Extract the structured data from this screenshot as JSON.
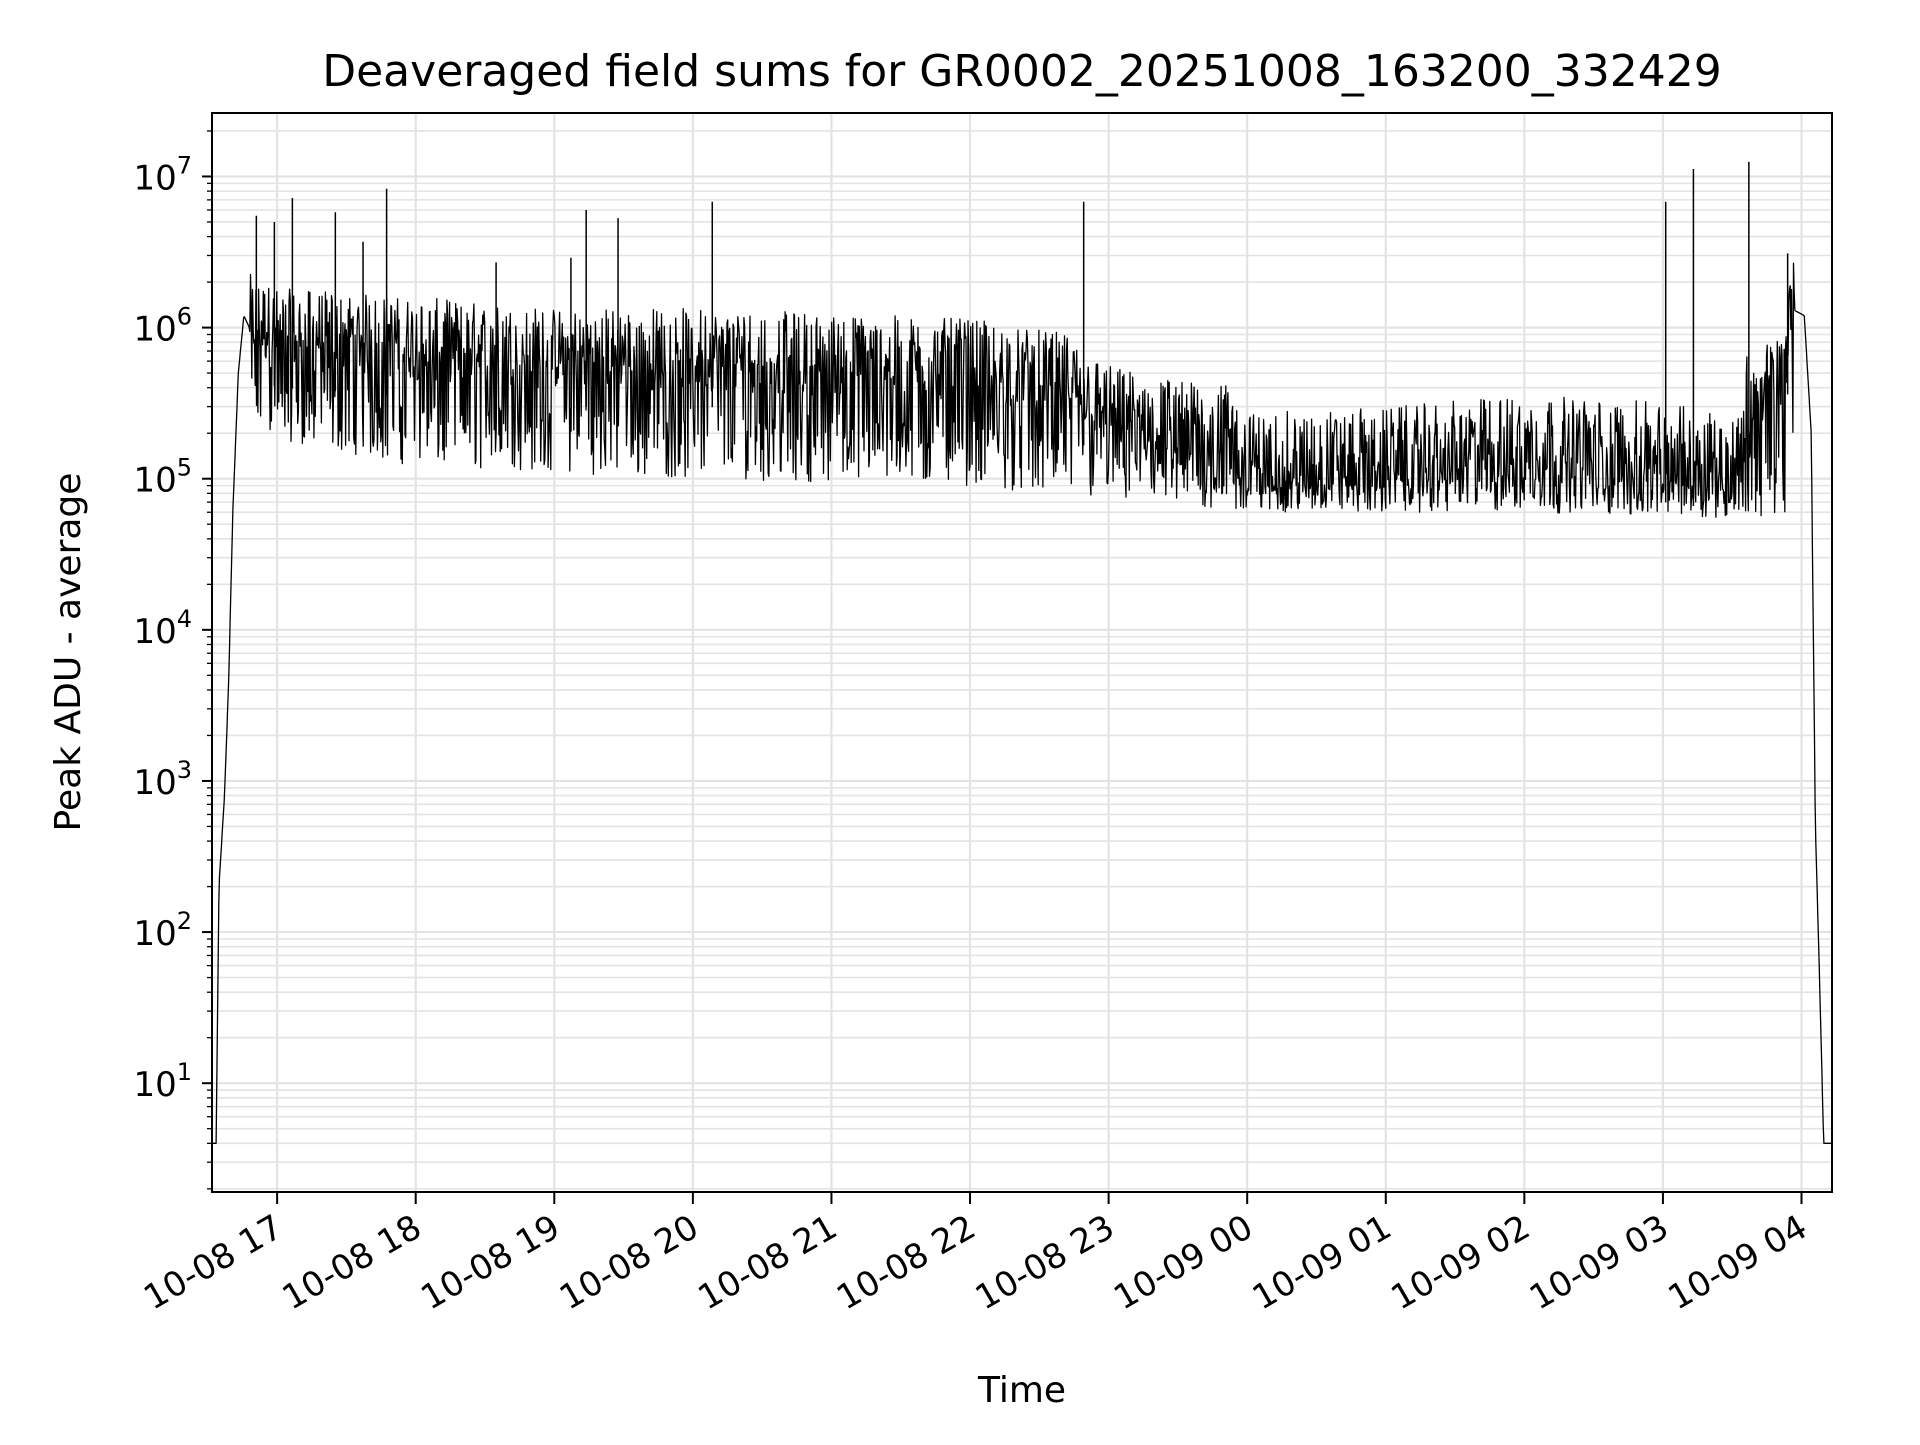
{
  "chart_data": {
    "type": "line",
    "title": "Deaveraged field sums for GR0002_20251008_163200_332429",
    "xlabel": "Time",
    "ylabel": "Peak ADU - average",
    "yscale": "log",
    "ylim_log10": [
      0.28,
      7.42
    ],
    "xlim_hours": [
      16.53,
      28.22
    ],
    "grid": true,
    "x_ticks": [
      {
        "label": "10-08 17",
        "hour": 17
      },
      {
        "label": "10-08 18",
        "hour": 18
      },
      {
        "label": "10-08 19",
        "hour": 19
      },
      {
        "label": "10-08 20",
        "hour": 20
      },
      {
        "label": "10-08 21",
        "hour": 21
      },
      {
        "label": "10-08 22",
        "hour": 22
      },
      {
        "label": "10-08 23",
        "hour": 23
      },
      {
        "label": "10-09 00",
        "hour": 24
      },
      {
        "label": "10-09 01",
        "hour": 25
      },
      {
        "label": "10-09 02",
        "hour": 26
      },
      {
        "label": "10-09 03",
        "hour": 27
      },
      {
        "label": "10-09 04",
        "hour": 28
      }
    ],
    "y_ticks": [
      {
        "base": "10",
        "exp": "1",
        "value": 10
      },
      {
        "base": "10",
        "exp": "2",
        "value": 100
      },
      {
        "base": "10",
        "exp": "3",
        "value": 1000
      },
      {
        "base": "10",
        "exp": "4",
        "value": 10000
      },
      {
        "base": "10",
        "exp": "5",
        "value": 100000
      },
      {
        "base": "10",
        "exp": "6",
        "value": 1000000
      },
      {
        "base": "10",
        "exp": "7",
        "value": 10000000
      }
    ],
    "series": [
      {
        "name": "deaveraged field sum",
        "color": "#000000",
        "envelope": [
          {
            "hour": 16.53,
            "value": 4
          },
          {
            "hour": 16.56,
            "value": 4
          },
          {
            "hour": 16.58,
            "value": 200
          },
          {
            "hour": 16.62,
            "value": 800
          },
          {
            "hour": 16.65,
            "value": 4500
          },
          {
            "hour": 16.68,
            "value": 60000
          },
          {
            "hour": 16.72,
            "value": 500000
          },
          {
            "hour": 16.76,
            "value": 1200000
          },
          {
            "hour": 16.8,
            "value": 1000000
          },
          {
            "hour": 17.0,
            "value": 800000
          },
          {
            "hour": 18.0,
            "value": 700000
          },
          {
            "hour": 19.0,
            "value": 600000
          },
          {
            "hour": 20.0,
            "value": 600000
          },
          {
            "hour": 21.0,
            "value": 550000
          },
          {
            "hour": 22.0,
            "value": 500000
          },
          {
            "hour": 22.7,
            "value": 400000
          },
          {
            "hour": 23.0,
            "value": 250000
          },
          {
            "hour": 23.5,
            "value": 200000
          },
          {
            "hour": 23.9,
            "value": 180000
          },
          {
            "hour": 24.0,
            "value": 120000
          },
          {
            "hour": 25.0,
            "value": 130000
          },
          {
            "hour": 26.0,
            "value": 160000
          },
          {
            "hour": 27.0,
            "value": 140000
          },
          {
            "hour": 27.55,
            "value": 120000
          },
          {
            "hour": 27.6,
            "value": 300000
          },
          {
            "hour": 27.85,
            "value": 400000
          },
          {
            "hour": 27.95,
            "value": 1300000
          },
          {
            "hour": 28.02,
            "value": 1200000
          },
          {
            "hour": 28.07,
            "value": 200000
          },
          {
            "hour": 28.1,
            "value": 500
          },
          {
            "hour": 28.13,
            "value": 50
          },
          {
            "hour": 28.16,
            "value": 4
          },
          {
            "hour": 28.22,
            "value": 4
          }
        ],
        "spikes": [
          {
            "hour": 16.85,
            "value": 5500000
          },
          {
            "hour": 16.98,
            "value": 5000000
          },
          {
            "hour": 17.11,
            "value": 7200000
          },
          {
            "hour": 17.42,
            "value": 5800000
          },
          {
            "hour": 17.62,
            "value": 3700000
          },
          {
            "hour": 17.79,
            "value": 8300000
          },
          {
            "hour": 18.58,
            "value": 2700000
          },
          {
            "hour": 19.12,
            "value": 2900000
          },
          {
            "hour": 19.23,
            "value": 6000000
          },
          {
            "hour": 19.46,
            "value": 5300000
          },
          {
            "hour": 20.14,
            "value": 6800000
          },
          {
            "hour": 22.82,
            "value": 6800000
          },
          {
            "hour": 27.02,
            "value": 6800000
          },
          {
            "hour": 27.22,
            "value": 11200000
          },
          {
            "hour": 27.62,
            "value": 12500000
          },
          {
            "hour": 27.9,
            "value": 3100000
          }
        ],
        "lower_band": [
          {
            "hour": 16.8,
            "value": 200000
          },
          {
            "hour": 18.0,
            "value": 120000
          },
          {
            "hour": 20.0,
            "value": 100000
          },
          {
            "hour": 22.0,
            "value": 90000
          },
          {
            "hour": 23.0,
            "value": 70000
          },
          {
            "hour": 24.0,
            "value": 60000
          },
          {
            "hour": 26.0,
            "value": 60000
          },
          {
            "hour": 27.55,
            "value": 55000
          }
        ]
      }
    ]
  }
}
